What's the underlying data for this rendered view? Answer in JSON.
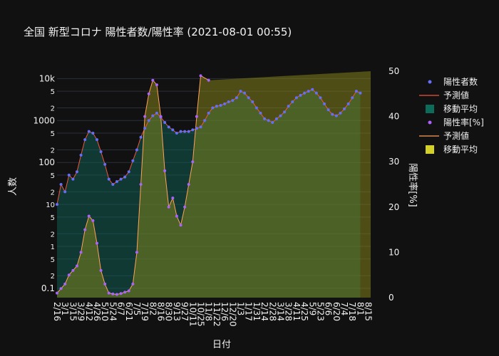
{
  "chart_data": {
    "type": "scatter",
    "title": "全国 新型コロナ 陽性者数/陽性率 (2021-08-01 00:55)",
    "xlabel": "日付",
    "ylabel": "人数",
    "y2label": "陽性率[%]",
    "y_scale": "log",
    "ylim": [
      0.06,
      15000
    ],
    "y2lim": [
      0,
      50
    ],
    "grid": true,
    "legend_position": "right",
    "x_tick_labels": [
      "2/16",
      "3/1",
      "3/15",
      "3/29",
      "4/12",
      "4/26",
      "5/10",
      "5/24",
      "6/7",
      "6/21",
      "7/5",
      "7/19",
      "8/2",
      "8/16",
      "8/30",
      "9/13",
      "9/27",
      "10/11",
      "10/25",
      "11/8",
      "11/22",
      "12/6",
      "12/20",
      "1/3",
      "1/17",
      "1/31",
      "2/14",
      "2/28",
      "3/14",
      "3/28",
      "4/11",
      "4/25",
      "5/9",
      "5/23",
      "6/6",
      "6/20",
      "7/4",
      "7/18",
      "8/1",
      "8/15"
    ],
    "y_tick_labels": [
      {
        "v": 0.1,
        "t": "0.1"
      },
      {
        "v": 0.2,
        "t": "2"
      },
      {
        "v": 0.5,
        "t": "5"
      },
      {
        "v": 1,
        "t": "1"
      },
      {
        "v": 2,
        "t": "2"
      },
      {
        "v": 5,
        "t": "5"
      },
      {
        "v": 10,
        "t": "10"
      },
      {
        "v": 20,
        "t": "2"
      },
      {
        "v": 50,
        "t": "5"
      },
      {
        "v": 100,
        "t": "100"
      },
      {
        "v": 200,
        "t": "2"
      },
      {
        "v": 500,
        "t": "5"
      },
      {
        "v": 1000,
        "t": "1000"
      },
      {
        "v": 2000,
        "t": "2"
      },
      {
        "v": 5000,
        "t": "5"
      },
      {
        "v": 10000,
        "t": "10k"
      }
    ],
    "y2_tick_labels": [
      0,
      10,
      20,
      30,
      40,
      50
    ],
    "legend": [
      {
        "label": "陽性者数",
        "kind": "dot",
        "color": "#636efa"
      },
      {
        "label": "予測値",
        "kind": "line",
        "color": "#ef553b"
      },
      {
        "label": "移動平均",
        "kind": "box",
        "color": "#0d6b5a"
      },
      {
        "label": "陽性率[%]",
        "kind": "dot",
        "color": "#ab63fa"
      },
      {
        "label": "予測値",
        "kind": "line",
        "color": "#ffa15a"
      },
      {
        "label": "移動平均",
        "kind": "box",
        "color": "#d4d02a"
      }
    ],
    "series": [
      {
        "name": "陽性者数",
        "axis": "y",
        "color": "#636efa",
        "points": [
          [
            "2/16",
            10
          ],
          [
            "2/23",
            30
          ],
          [
            "3/1",
            20
          ],
          [
            "3/8",
            50
          ],
          [
            "3/15",
            40
          ],
          [
            "3/22",
            60
          ],
          [
            "3/29",
            150
          ],
          [
            "4/5",
            350
          ],
          [
            "4/12",
            550
          ],
          [
            "4/19",
            500
          ],
          [
            "4/26",
            350
          ],
          [
            "5/3",
            180
          ],
          [
            "5/10",
            90
          ],
          [
            "5/17",
            40
          ],
          [
            "5/24",
            30
          ],
          [
            "5/31",
            35
          ],
          [
            "6/7",
            40
          ],
          [
            "6/14",
            45
          ],
          [
            "6/21",
            60
          ],
          [
            "6/28",
            110
          ],
          [
            "7/5",
            200
          ],
          [
            "7/12",
            400
          ],
          [
            "7/19",
            650
          ],
          [
            "7/26",
            1000
          ],
          [
            "8/2",
            1300
          ],
          [
            "8/9",
            1500
          ],
          [
            "8/16",
            1200
          ],
          [
            "8/23",
            900
          ],
          [
            "8/30",
            700
          ],
          [
            "9/6",
            600
          ],
          [
            "9/13",
            500
          ],
          [
            "9/20",
            550
          ],
          [
            "9/27",
            550
          ],
          [
            "10/4",
            550
          ],
          [
            "10/11",
            600
          ],
          [
            "10/18",
            650
          ],
          [
            "10/25",
            700
          ],
          [
            "11/1",
            1000
          ],
          [
            "11/8",
            1500
          ],
          [
            "11/15",
            2000
          ],
          [
            "11/22",
            2200
          ],
          [
            "11/29",
            2300
          ],
          [
            "12/6",
            2500
          ],
          [
            "12/13",
            2800
          ],
          [
            "12/20",
            3000
          ],
          [
            "12/27",
            3500
          ],
          [
            "1/3",
            5000
          ],
          [
            "1/10",
            4500
          ],
          [
            "1/17",
            3500
          ],
          [
            "1/24",
            2800
          ],
          [
            "1/31",
            2000
          ],
          [
            "2/7",
            1500
          ],
          [
            "2/14",
            1100
          ],
          [
            "2/21",
            1000
          ],
          [
            "2/28",
            900
          ],
          [
            "3/7",
            1100
          ],
          [
            "3/14",
            1300
          ],
          [
            "3/21",
            1600
          ],
          [
            "3/28",
            2200
          ],
          [
            "4/4",
            2800
          ],
          [
            "4/11",
            3500
          ],
          [
            "4/18",
            4000
          ],
          [
            "4/25",
            4500
          ],
          [
            "5/2",
            5000
          ],
          [
            "5/9",
            5500
          ],
          [
            "5/16",
            4500
          ],
          [
            "5/23",
            3500
          ],
          [
            "5/30",
            2500
          ],
          [
            "6/6",
            1800
          ],
          [
            "6/13",
            1400
          ],
          [
            "6/20",
            1300
          ],
          [
            "6/27",
            1500
          ],
          [
            "7/4",
            1900
          ],
          [
            "7/11",
            2500
          ],
          [
            "7/18",
            3500
          ],
          [
            "7/25",
            5000
          ],
          [
            "8/1",
            4500
          ]
        ]
      },
      {
        "name": "陽性率[%]",
        "axis": "y2",
        "color": "#ab63fa",
        "points": [
          [
            "2/16",
            1
          ],
          [
            "2/23",
            2
          ],
          [
            "3/1",
            3
          ],
          [
            "3/8",
            5
          ],
          [
            "3/15",
            6
          ],
          [
            "3/22",
            7
          ],
          [
            "3/29",
            10
          ],
          [
            "4/5",
            15
          ],
          [
            "4/12",
            18
          ],
          [
            "4/19",
            17
          ],
          [
            "4/26",
            12
          ],
          [
            "5/3",
            6
          ],
          [
            "5/10",
            3
          ],
          [
            "5/17",
            1
          ],
          [
            "5/24",
            0.8
          ],
          [
            "5/31",
            0.7
          ],
          [
            "6/7",
            0.9
          ],
          [
            "6/14",
            1.2
          ],
          [
            "6/21",
            1.5
          ],
          [
            "6/28",
            3
          ],
          [
            "7/5",
            10
          ],
          [
            "7/12",
            25
          ],
          [
            "7/19",
            40
          ],
          [
            "7/26",
            45
          ],
          [
            "8/2",
            48
          ],
          [
            "8/9",
            47
          ],
          [
            "8/16",
            40
          ],
          [
            "8/23",
            28
          ],
          [
            "8/30",
            20
          ],
          [
            "9/6",
            22
          ],
          [
            "9/13",
            18
          ],
          [
            "9/20",
            16
          ],
          [
            "9/27",
            20
          ],
          [
            "10/4",
            25
          ],
          [
            "10/11",
            30
          ],
          [
            "10/18",
            40
          ],
          [
            "10/25",
            49
          ],
          [
            "11/8",
            48
          ]
        ]
      }
    ]
  }
}
